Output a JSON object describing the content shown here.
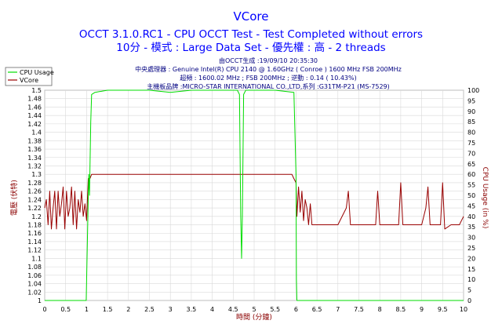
{
  "header": {
    "title": "VCore",
    "subtitle1": "OCCT 3.1.0.RC1 - CPU OCCT Test - Test Completed without errors",
    "subtitle2": "10分 - 模式 : Large Data Set - 優先權 : 高 - 2 threads"
  },
  "info_lines": [
    "由OCCT生成 :19/09/10 20:35:30",
    "中央處理器 : Genuine Intel(R) CPU 2140 @ 1.60GHz ( Conroe ) 1600 MHz FSB 200MHz",
    "超頻 : 1600.02 MHz ; FSB 200MHz ; 逆動 : 0.14 ( 10.43%)",
    "主機板品牌 :MICRO-STAR INTERNATIONAL CO.,LTD,系列 :G31TM-P21 (MS-7529)"
  ],
  "colors": {
    "cpu_usage": "#00dd00",
    "vcore": "#990000",
    "grid": "#d9d9d9",
    "title": "#0000ff"
  },
  "chart_data": {
    "type": "line",
    "title": "VCore",
    "xlabel": "時間 (分鐘)",
    "ylabel": "電壓 (伏特)",
    "y2label": "CPU Usage (in %)",
    "xlim": [
      0,
      10
    ],
    "ylim": [
      1.0,
      1.5
    ],
    "y2lim": [
      0,
      100
    ],
    "grid": true,
    "legend_position": "top-left",
    "x_ticks": [
      "0",
      "0.5",
      "1",
      "1.5",
      "2",
      "2.5",
      "3",
      "3.5",
      "4",
      "4.5",
      "5",
      "5.5",
      "6",
      "6.5",
      "7",
      "7.5",
      "8",
      "8.5",
      "9",
      "9.5",
      "10"
    ],
    "y_ticks": [
      "1",
      "1.02",
      "1.04",
      "1.06",
      "1.08",
      "1.1",
      "1.12",
      "1.14",
      "1.16",
      "1.18",
      "1.2",
      "1.22",
      "1.24",
      "1.26",
      "1.28",
      "1.3",
      "1.32",
      "1.34",
      "1.36",
      "1.38",
      "1.4",
      "1.42",
      "1.44",
      "1.46",
      "1.48",
      "1.5"
    ],
    "y2_ticks": [
      "0",
      "5",
      "10",
      "15",
      "20",
      "25",
      "30",
      "35",
      "40",
      "45",
      "50",
      "55",
      "60",
      "65",
      "70",
      "75",
      "80",
      "85",
      "90",
      "95",
      "100"
    ],
    "series": [
      {
        "name": "CPU Usage",
        "axis": "right",
        "x": [
          0,
          0.98,
          0.99,
          1.05,
          1.07,
          1.1,
          1.12,
          1.2,
          1.5,
          2.0,
          2.5,
          3.0,
          3.5,
          4.0,
          4.6,
          4.65,
          4.68,
          4.7,
          4.72,
          4.75,
          4.8,
          5.0,
          5.5,
          5.95,
          6.0,
          6.01,
          6.02,
          6.05,
          7,
          8,
          9,
          10
        ],
        "y": [
          0,
          0,
          0,
          60,
          50,
          85,
          98,
          99,
          100,
          100,
          100,
          99,
          100,
          100,
          100,
          98,
          40,
          20,
          40,
          98,
          100,
          100,
          100,
          99,
          60,
          10,
          0,
          0,
          0,
          0,
          0,
          0
        ]
      },
      {
        "name": "VCore",
        "axis": "left",
        "x": [
          0,
          0.04,
          0.08,
          0.12,
          0.16,
          0.2,
          0.24,
          0.28,
          0.32,
          0.36,
          0.4,
          0.44,
          0.48,
          0.52,
          0.56,
          0.6,
          0.64,
          0.68,
          0.72,
          0.76,
          0.8,
          0.84,
          0.88,
          0.92,
          0.96,
          1.0,
          1.04,
          1.08,
          1.12,
          1.5,
          2.0,
          2.5,
          3.0,
          3.5,
          4.0,
          4.5,
          5.0,
          5.5,
          5.9,
          5.95,
          6.0,
          6.02,
          6.06,
          6.1,
          6.14,
          6.18,
          6.22,
          6.26,
          6.3,
          6.34,
          6.38,
          6.5,
          6.8,
          7.0,
          7.2,
          7.25,
          7.3,
          7.5,
          7.9,
          7.95,
          8.0,
          8.2,
          8.45,
          8.5,
          8.55,
          8.9,
          9.0,
          9.1,
          9.15,
          9.2,
          9.45,
          9.5,
          9.55,
          9.7,
          9.9,
          10.0
        ],
        "y": [
          1.22,
          1.24,
          1.18,
          1.26,
          1.17,
          1.22,
          1.26,
          1.17,
          1.26,
          1.2,
          1.23,
          1.27,
          1.17,
          1.26,
          1.2,
          1.22,
          1.27,
          1.18,
          1.26,
          1.17,
          1.24,
          1.21,
          1.26,
          1.2,
          1.23,
          1.19,
          1.29,
          1.29,
          1.3,
          1.3,
          1.3,
          1.3,
          1.3,
          1.3,
          1.3,
          1.3,
          1.3,
          1.3,
          1.3,
          1.29,
          1.28,
          1.2,
          1.27,
          1.21,
          1.26,
          1.19,
          1.24,
          1.22,
          1.18,
          1.23,
          1.18,
          1.18,
          1.18,
          1.18,
          1.22,
          1.26,
          1.18,
          1.18,
          1.18,
          1.26,
          1.18,
          1.18,
          1.18,
          1.28,
          1.18,
          1.18,
          1.18,
          1.22,
          1.27,
          1.18,
          1.18,
          1.28,
          1.17,
          1.18,
          1.18,
          1.2
        ]
      }
    ]
  }
}
